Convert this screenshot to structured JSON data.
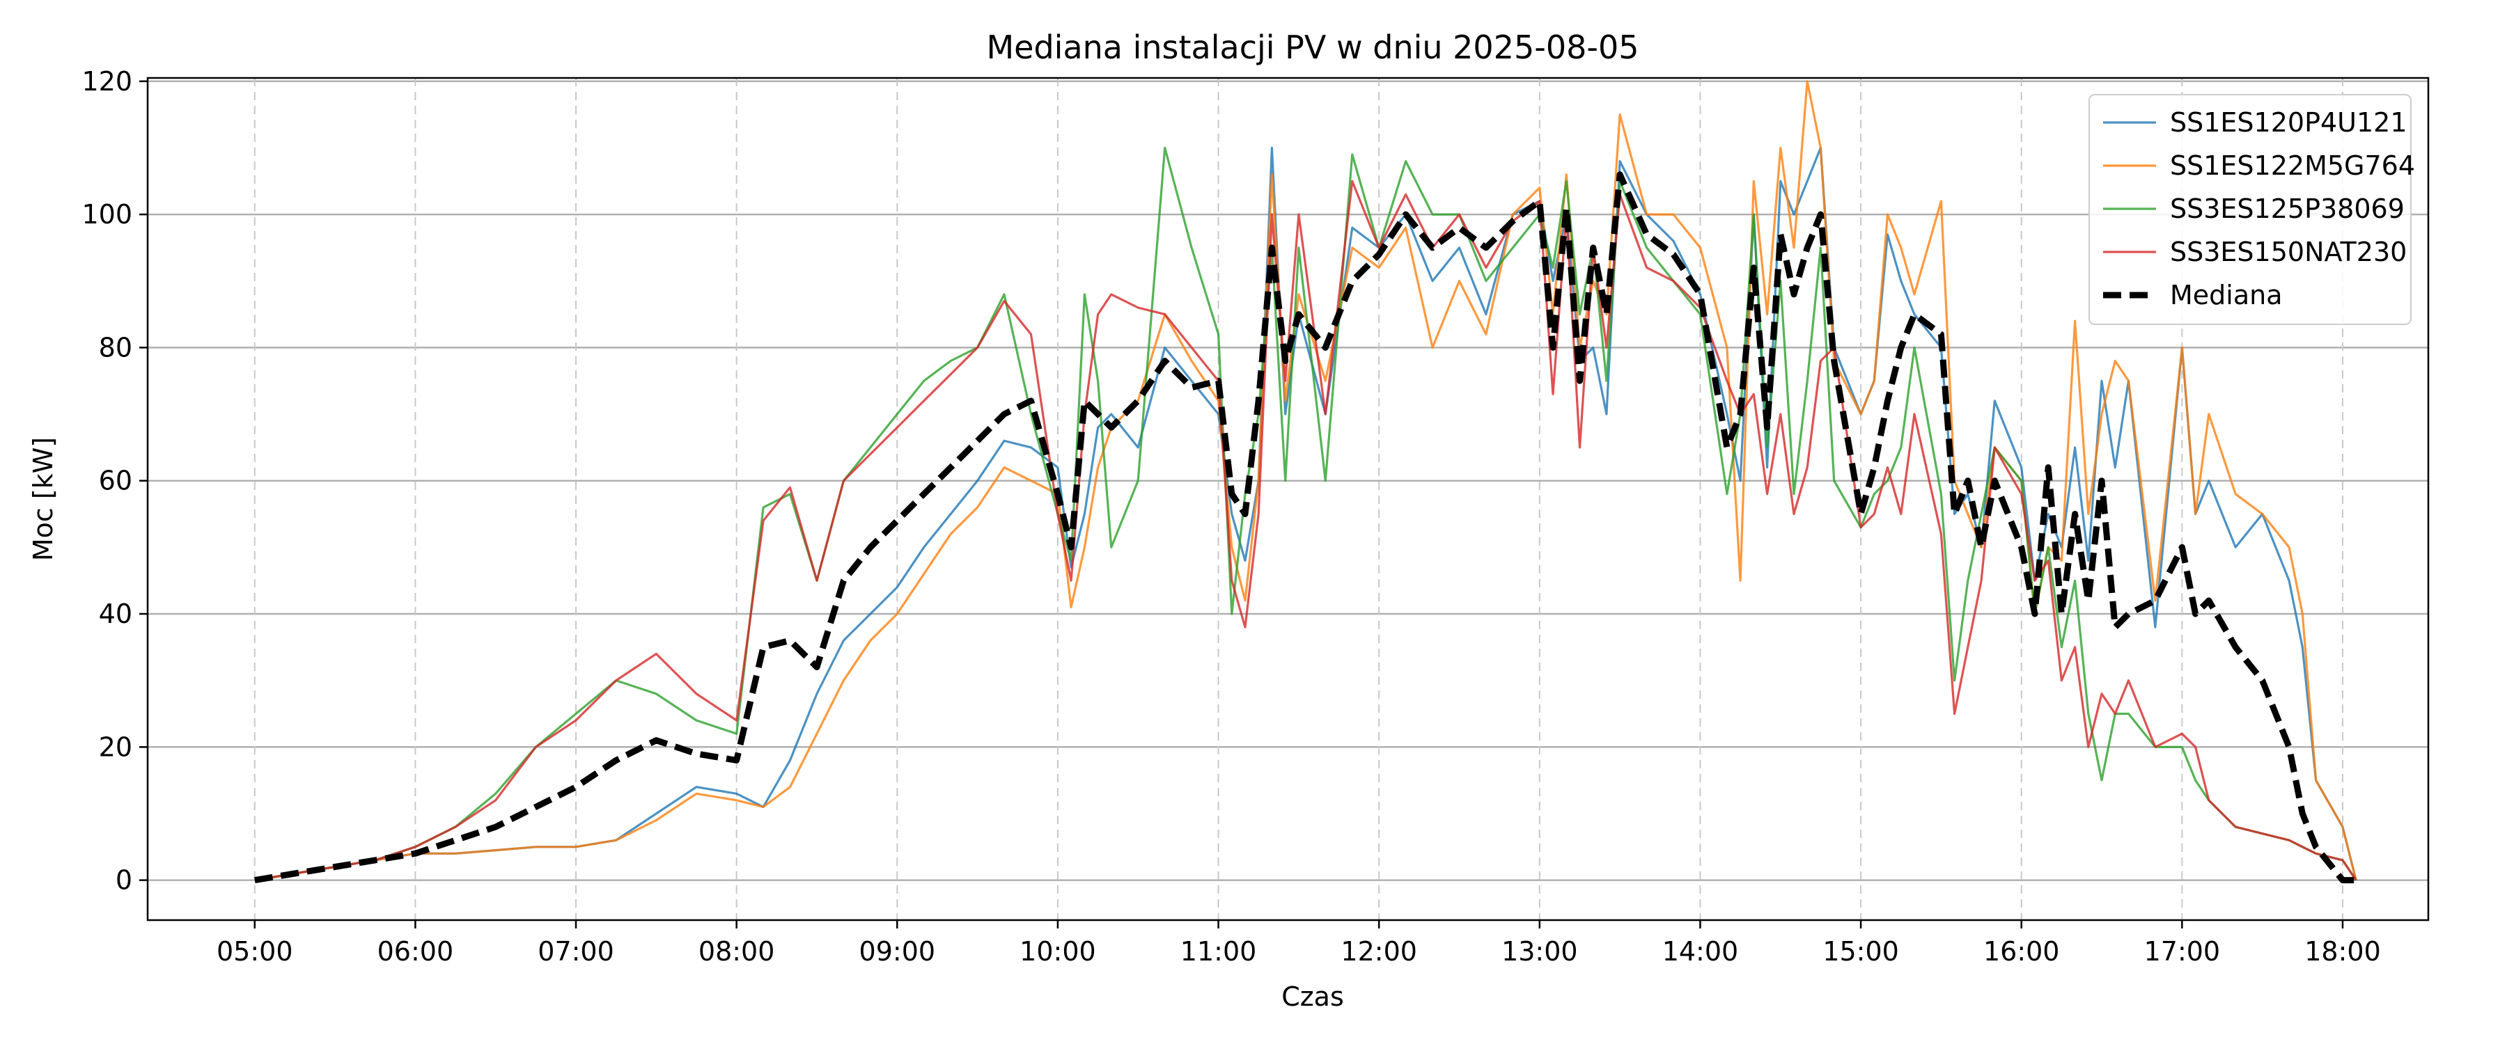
{
  "chart_data": {
    "type": "line",
    "title": "Mediana instalacji PV w dniu 2025-08-05",
    "xlabel": "Czas",
    "ylabel": "Moc [kW]",
    "x_ticks": [
      "05:00",
      "06:00",
      "07:00",
      "08:00",
      "09:00",
      "10:00",
      "11:00",
      "12:00",
      "13:00",
      "14:00",
      "15:00",
      "16:00",
      "17:00",
      "18:00"
    ],
    "y_ticks": [
      0,
      20,
      40,
      60,
      80,
      100,
      120
    ],
    "xlim": [
      "04:20",
      "18:32"
    ],
    "ylim": [
      -6,
      120.5
    ],
    "grid": "horizontal solid, vertical dashed",
    "legend_position": "top-right",
    "x": [
      "05:00",
      "05:15",
      "05:30",
      "05:45",
      "06:00",
      "06:15",
      "06:30",
      "06:45",
      "07:00",
      "07:15",
      "07:30",
      "07:45",
      "08:00",
      "08:10",
      "08:20",
      "08:30",
      "08:40",
      "08:50",
      "09:00",
      "09:10",
      "09:20",
      "09:30",
      "09:40",
      "09:50",
      "10:00",
      "10:05",
      "10:10",
      "10:15",
      "10:20",
      "10:30",
      "10:40",
      "10:50",
      "11:00",
      "11:05",
      "11:10",
      "11:15",
      "11:20",
      "11:25",
      "11:30",
      "11:40",
      "11:50",
      "12:00",
      "12:10",
      "12:20",
      "12:30",
      "12:40",
      "12:50",
      "13:00",
      "13:05",
      "13:10",
      "13:15",
      "13:20",
      "13:25",
      "13:30",
      "13:40",
      "13:50",
      "14:00",
      "14:10",
      "14:15",
      "14:20",
      "14:25",
      "14:30",
      "14:35",
      "14:40",
      "14:45",
      "14:50",
      "15:00",
      "15:05",
      "15:10",
      "15:15",
      "15:20",
      "15:30",
      "15:35",
      "15:40",
      "15:45",
      "15:50",
      "16:00",
      "16:05",
      "16:10",
      "16:15",
      "16:20",
      "16:25",
      "16:30",
      "16:35",
      "16:40",
      "16:50",
      "17:00",
      "17:05",
      "17:10",
      "17:20",
      "17:30",
      "17:40",
      "17:45",
      "17:50",
      "18:00",
      "18:05"
    ],
    "series": [
      {
        "name": "SS1ES120P4U121",
        "color": "#1f77b4",
        "values": [
          0,
          1,
          2,
          3,
          4,
          4,
          4.5,
          5,
          5,
          6,
          10,
          14,
          13,
          11,
          18,
          28,
          36,
          40,
          44,
          50,
          55,
          60,
          66,
          65,
          62,
          47,
          55,
          68,
          70,
          65,
          80,
          75,
          70,
          55,
          48,
          60,
          110,
          70,
          85,
          70,
          98,
          95,
          100,
          90,
          95,
          85,
          100,
          102,
          90,
          100,
          78,
          80,
          70,
          108,
          100,
          96,
          88,
          70,
          60,
          100,
          62,
          105,
          100,
          105,
          110,
          80,
          70,
          75,
          97,
          90,
          85,
          80,
          55,
          58,
          50,
          72,
          62,
          45,
          55,
          50,
          65,
          48,
          75,
          62,
          75,
          38,
          80,
          55,
          60,
          50,
          55,
          45,
          35,
          15,
          8,
          0
        ]
      },
      {
        "name": "SS1ES122M5G764",
        "color": "#ff7f0e",
        "values": [
          0,
          1,
          2,
          3,
          4,
          4,
          4.5,
          5,
          5,
          6,
          9,
          13,
          12,
          11,
          14,
          22,
          30,
          36,
          40,
          46,
          52,
          56,
          62,
          60,
          58,
          41,
          50,
          62,
          68,
          72,
          85,
          78,
          72,
          50,
          42,
          60,
          106,
          72,
          88,
          75,
          95,
          92,
          98,
          80,
          90,
          82,
          100,
          104,
          85,
          106,
          80,
          90,
          85,
          115,
          100,
          100,
          95,
          80,
          45,
          105,
          85,
          110,
          95,
          120,
          110,
          78,
          70,
          75,
          100,
          95,
          88,
          102,
          60,
          55,
          50,
          65,
          60,
          40,
          50,
          48,
          84,
          55,
          70,
          78,
          75,
          42,
          80,
          55,
          70,
          58,
          55,
          50,
          40,
          15,
          8,
          0
        ]
      },
      {
        "name": "SS3ES125P38069",
        "color": "#2ca02c",
        "values": [
          0,
          1,
          2,
          3,
          5,
          8,
          13,
          20,
          25,
          30,
          28,
          24,
          22,
          56,
          58,
          45,
          60,
          65,
          70,
          75,
          78,
          80,
          88,
          70,
          55,
          48,
          88,
          75,
          50,
          60,
          110,
          95,
          82,
          40,
          58,
          70,
          95,
          60,
          95,
          60,
          109,
          95,
          108,
          100,
          100,
          90,
          95,
          100,
          92,
          105,
          85,
          95,
          75,
          105,
          95,
          90,
          85,
          58,
          70,
          100,
          65,
          90,
          58,
          75,
          95,
          60,
          53,
          58,
          60,
          65,
          80,
          58,
          30,
          45,
          55,
          65,
          60,
          40,
          50,
          35,
          45,
          25,
          15,
          25,
          25,
          20,
          20,
          15,
          12,
          8,
          7,
          6,
          5,
          4,
          3,
          0
        ]
      },
      {
        "name": "SS3ES150NAT230",
        "color": "#d62728",
        "values": [
          0,
          1,
          2,
          3,
          5,
          8,
          12,
          20,
          24,
          30,
          34,
          28,
          24,
          54,
          59,
          45,
          60,
          64,
          68,
          72,
          76,
          80,
          87,
          82,
          55,
          45,
          70,
          85,
          88,
          86,
          85,
          80,
          75,
          45,
          38,
          55,
          100,
          75,
          100,
          70,
          105,
          95,
          103,
          95,
          100,
          92,
          99,
          102,
          73,
          100,
          65,
          95,
          80,
          103,
          92,
          90,
          86,
          75,
          70,
          73,
          58,
          70,
          55,
          62,
          78,
          80,
          53,
          55,
          62,
          55,
          70,
          52,
          25,
          35,
          45,
          65,
          58,
          45,
          48,
          30,
          35,
          20,
          28,
          25,
          30,
          20,
          22,
          20,
          12,
          8,
          7,
          6,
          5,
          4,
          3,
          0
        ]
      },
      {
        "name": "Mediana",
        "color": "#000000",
        "values": [
          0,
          1,
          2,
          3,
          4,
          6,
          8,
          11,
          14,
          18,
          21,
          19,
          18,
          35,
          36,
          32,
          45,
          50,
          54,
          58,
          62,
          66,
          70,
          72,
          58,
          50,
          72,
          70,
          68,
          72,
          78,
          74,
          75,
          58,
          55,
          72,
          95,
          78,
          85,
          80,
          90,
          94,
          100,
          95,
          98,
          95,
          99,
          102,
          80,
          101,
          75,
          95,
          85,
          106,
          97,
          94,
          88,
          65,
          70,
          92,
          68,
          97,
          88,
          95,
          100,
          78,
          55,
          62,
          72,
          80,
          85,
          82,
          55,
          60,
          50,
          60,
          50,
          40,
          62,
          40,
          55,
          42,
          60,
          38,
          40,
          42,
          50,
          40,
          42,
          35,
          30,
          20,
          10,
          5,
          0,
          0
        ]
      }
    ]
  }
}
